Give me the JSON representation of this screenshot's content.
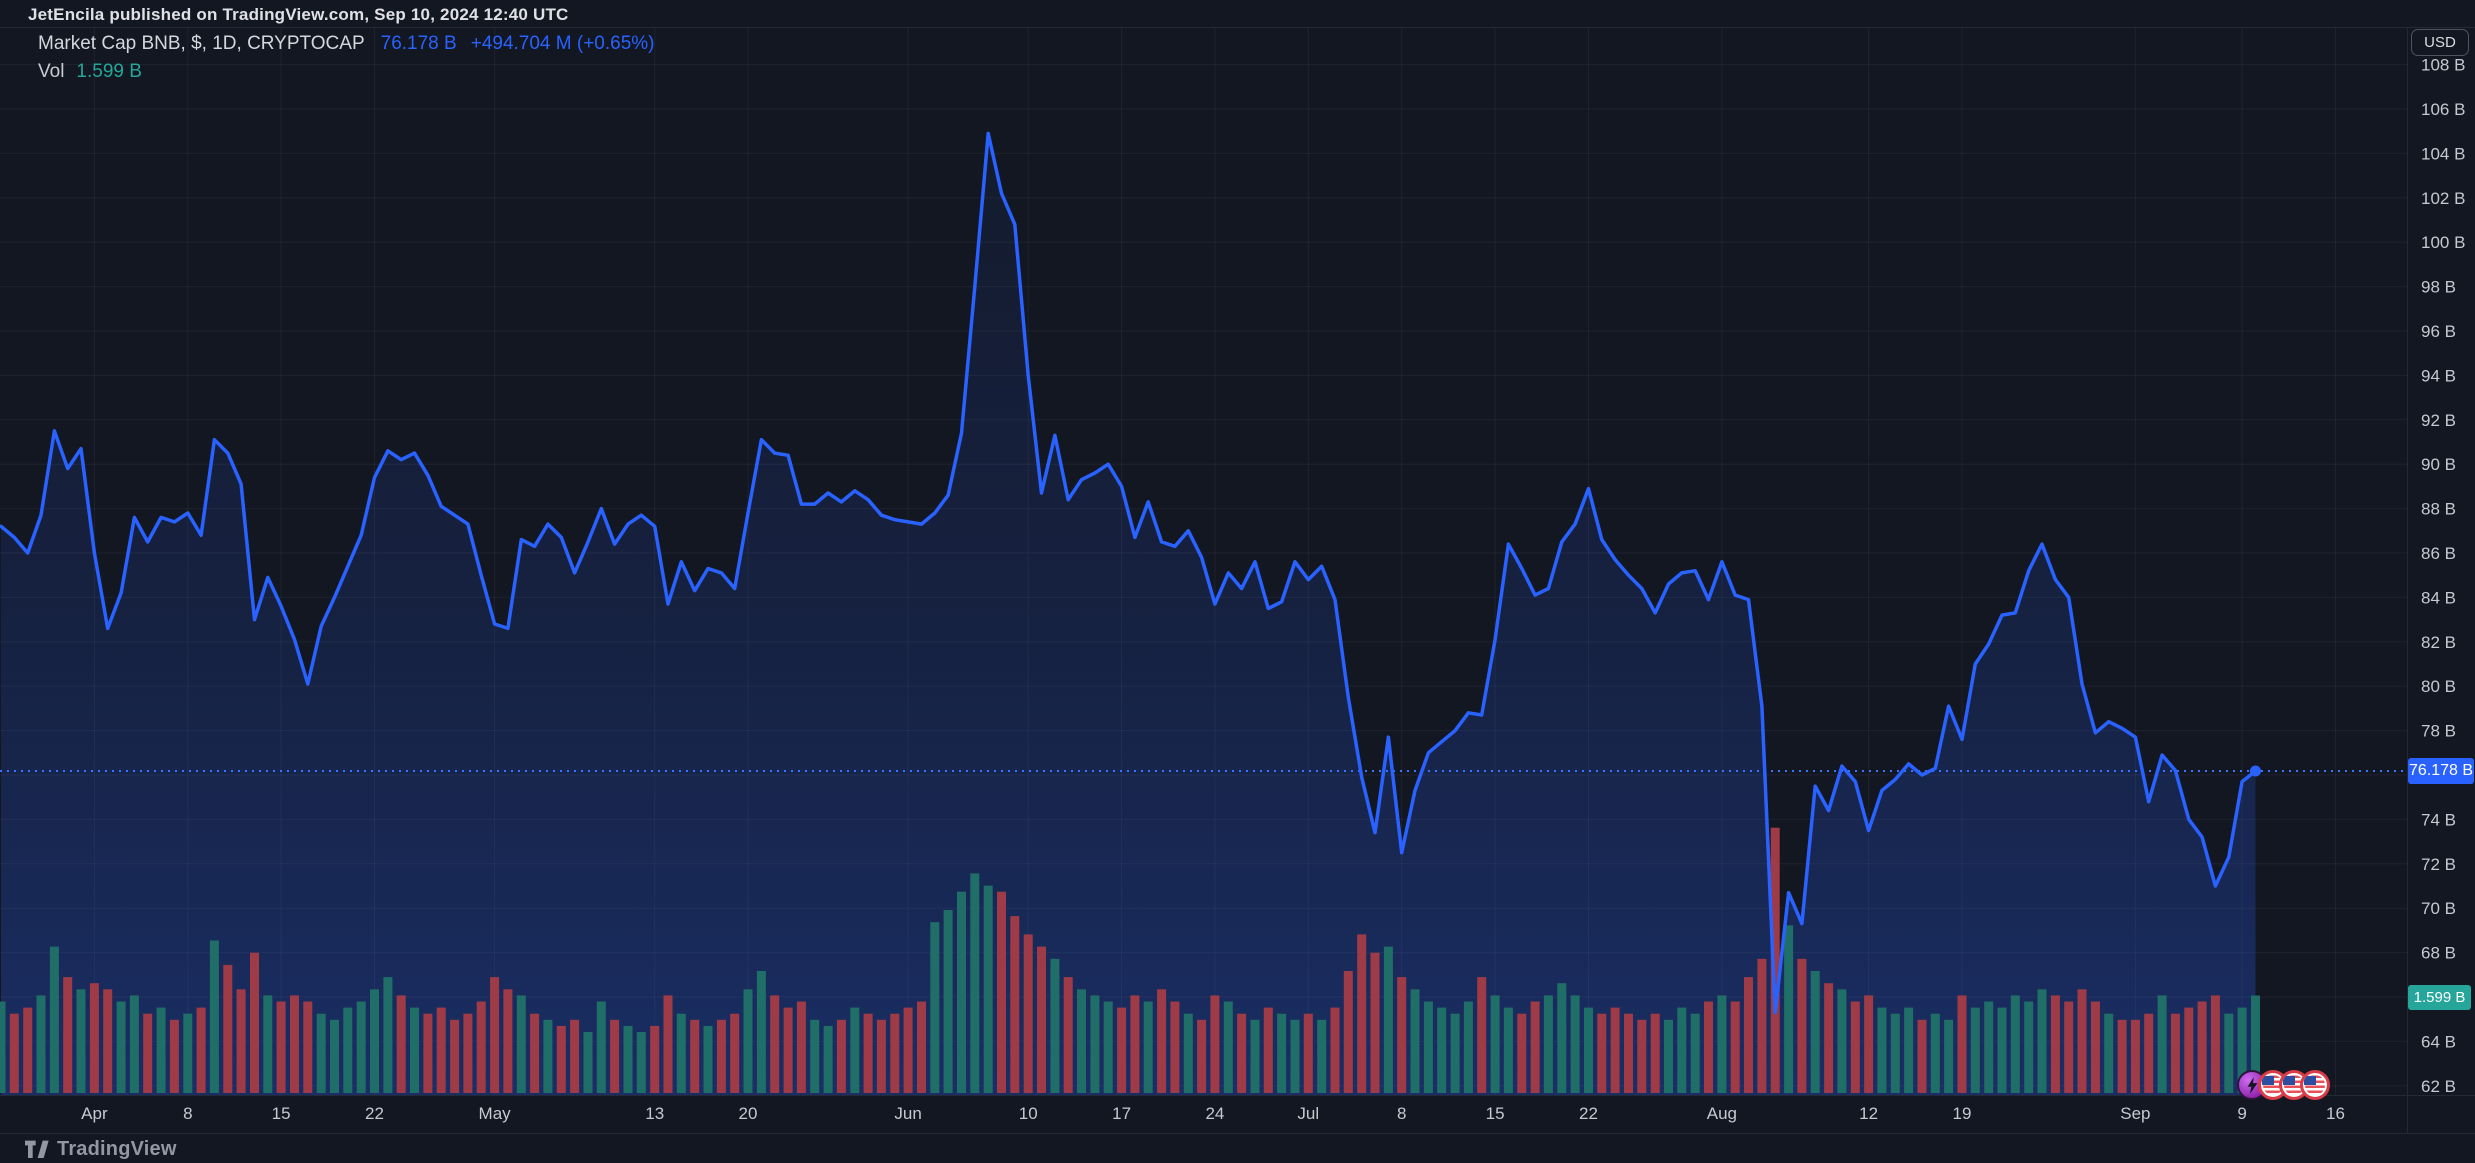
{
  "header": {
    "text": "JetEncila published on TradingView.com, Sep 10, 2024 12:40 UTC"
  },
  "legend": {
    "title": "Market Cap BNB, $, 1D, CRYPTOCAP",
    "price": "76.178 B",
    "change": "+494.704 M (+0.65%)",
    "vol_label": "Vol",
    "vol_value": "1.599 B"
  },
  "axis": {
    "currency": "USD",
    "price_label": "76.178 B",
    "vol_label": "1.599 B"
  },
  "footer": {
    "brand": "TradingView"
  },
  "event_markers": [
    "lightning-event-icon",
    "us-flag-event-icon",
    "us-flag-event-icon",
    "us-flag-event-icon"
  ],
  "colors": {
    "background": "#131722",
    "accent": "#2962ff",
    "grid": "rgba(255,255,255,0.05)",
    "axis_text": "#c6c9d0",
    "vol_up": "#206e68",
    "vol_down": "#9e3b46",
    "price_label_bg": "#2962ff",
    "vol_label_bg": "#26a69a",
    "frame": "#242936"
  },
  "chart_data": {
    "type": "area",
    "title": "Market Cap BNB, $, 1D, CRYPTOCAP",
    "xlabel": "",
    "ylabel": "USD",
    "interval": "1D",
    "start_date": "2024-03-25",
    "end_date": "2024-09-10",
    "last_price": 76.178,
    "last_change": "+494.704 M (+0.65%)",
    "last_volume_b": 1.599,
    "ylim": [
      62,
      108
    ],
    "grid": true,
    "legend_position": "top-left",
    "y_ticks": [
      "108 B",
      "106 B",
      "104 B",
      "102 B",
      "100 B",
      "98 B",
      "96 B",
      "94 B",
      "92 B",
      "90 B",
      "88 B",
      "86 B",
      "84 B",
      "82 B",
      "80 B",
      "78 B",
      "76 B",
      "74 B",
      "72 B",
      "70 B",
      "68 B",
      "66 B",
      "64 B",
      "62 B"
    ],
    "x_ticks": [
      {
        "label": "Apr",
        "i": 7
      },
      {
        "label": "8",
        "i": 14
      },
      {
        "label": "15",
        "i": 21
      },
      {
        "label": "22",
        "i": 28
      },
      {
        "label": "May",
        "i": 37
      },
      {
        "label": "13",
        "i": 49
      },
      {
        "label": "20",
        "i": 56
      },
      {
        "label": "Jun",
        "i": 68
      },
      {
        "label": "10",
        "i": 77
      },
      {
        "label": "17",
        "i": 84
      },
      {
        "label": "24",
        "i": 91
      },
      {
        "label": "Jul",
        "i": 98
      },
      {
        "label": "8",
        "i": 105
      },
      {
        "label": "15",
        "i": 112
      },
      {
        "label": "22",
        "i": 119
      },
      {
        "label": "Aug",
        "i": 129
      },
      {
        "label": "12",
        "i": 140
      },
      {
        "label": "19",
        "i": 147
      },
      {
        "label": "Sep",
        "i": 160
      },
      {
        "label": "9",
        "i": 168
      },
      {
        "label": "16",
        "i": 175
      }
    ],
    "values": [
      87.2,
      86.7,
      86.0,
      87.7,
      91.5,
      89.8,
      90.7,
      86.0,
      82.6,
      84.2,
      87.6,
      86.5,
      87.6,
      87.4,
      87.8,
      86.8,
      91.1,
      90.5,
      89.1,
      83.0,
      84.9,
      83.6,
      82.1,
      80.1,
      82.7,
      84.0,
      85.4,
      86.8,
      89.4,
      90.6,
      90.2,
      90.5,
      89.5,
      88.1,
      87.7,
      87.3,
      85.0,
      82.8,
      82.6,
      86.6,
      86.3,
      87.3,
      86.7,
      85.1,
      86.5,
      88.0,
      86.4,
      87.3,
      87.7,
      87.2,
      83.7,
      85.6,
      84.3,
      85.3,
      85.1,
      84.4,
      87.8,
      91.1,
      90.5,
      90.4,
      88.2,
      88.2,
      88.7,
      88.3,
      88.8,
      88.4,
      87.7,
      87.5,
      87.4,
      87.3,
      87.8,
      88.6,
      91.4,
      98.0,
      104.9,
      102.2,
      100.8,
      94.0,
      88.7,
      91.3,
      88.4,
      89.3,
      89.6,
      90.0,
      89.0,
      86.7,
      88.3,
      86.5,
      86.3,
      87.0,
      85.8,
      83.7,
      85.1,
      84.4,
      85.6,
      83.5,
      83.8,
      85.6,
      84.8,
      85.4,
      83.9,
      79.5,
      75.9,
      73.4,
      77.7,
      72.5,
      75.3,
      77.0,
      77.5,
      78.0,
      78.8,
      78.7,
      82.1,
      86.4,
      85.3,
      84.1,
      84.4,
      86.5,
      87.3,
      88.9,
      86.6,
      85.7,
      85.0,
      84.4,
      83.3,
      84.6,
      85.1,
      85.2,
      83.9,
      85.6,
      84.1,
      83.9,
      79.1,
      65.3,
      70.7,
      69.3,
      75.5,
      74.4,
      76.4,
      75.7,
      73.5,
      75.3,
      75.8,
      76.5,
      76.0,
      76.3,
      79.1,
      77.6,
      81.0,
      81.9,
      83.2,
      83.3,
      85.2,
      86.4,
      84.8,
      84.0,
      80.1,
      77.9,
      78.4,
      78.1,
      77.7,
      74.8,
      76.9,
      76.2,
      74.0,
      73.2,
      71.0,
      72.3,
      75.7,
      76.178
    ],
    "volumes_b": [
      1.5,
      1.3,
      1.4,
      1.6,
      2.4,
      1.9,
      1.7,
      1.8,
      1.7,
      1.5,
      1.6,
      1.3,
      1.4,
      1.2,
      1.3,
      1.4,
      2.5,
      2.1,
      1.7,
      2.3,
      1.6,
      1.5,
      1.6,
      1.5,
      1.3,
      1.2,
      1.4,
      1.5,
      1.7,
      1.9,
      1.6,
      1.4,
      1.3,
      1.4,
      1.2,
      1.3,
      1.5,
      1.9,
      1.7,
      1.6,
      1.3,
      1.2,
      1.1,
      1.2,
      1.0,
      1.5,
      1.2,
      1.1,
      1.0,
      1.1,
      1.6,
      1.3,
      1.2,
      1.1,
      1.2,
      1.3,
      1.7,
      2.0,
      1.6,
      1.4,
      1.5,
      1.2,
      1.1,
      1.2,
      1.4,
      1.3,
      1.2,
      1.3,
      1.4,
      1.5,
      2.8,
      3.0,
      3.3,
      3.6,
      3.4,
      3.3,
      2.9,
      2.6,
      2.4,
      2.2,
      1.9,
      1.7,
      1.6,
      1.5,
      1.4,
      1.6,
      1.5,
      1.7,
      1.5,
      1.3,
      1.2,
      1.6,
      1.5,
      1.3,
      1.2,
      1.4,
      1.3,
      1.2,
      1.3,
      1.2,
      1.4,
      2.0,
      2.6,
      2.3,
      2.4,
      1.9,
      1.7,
      1.5,
      1.4,
      1.3,
      1.5,
      1.9,
      1.6,
      1.4,
      1.3,
      1.5,
      1.6,
      1.8,
      1.6,
      1.4,
      1.3,
      1.4,
      1.3,
      1.2,
      1.3,
      1.2,
      1.4,
      1.3,
      1.5,
      1.6,
      1.5,
      1.9,
      2.2,
      4.35,
      2.75,
      2.2,
      2.0,
      1.8,
      1.7,
      1.5,
      1.6,
      1.4,
      1.3,
      1.4,
      1.2,
      1.3,
      1.2,
      1.6,
      1.4,
      1.5,
      1.4,
      1.6,
      1.5,
      1.7,
      1.6,
      1.5,
      1.7,
      1.5,
      1.3,
      1.2,
      1.2,
      1.3,
      1.6,
      1.3,
      1.4,
      1.5,
      1.6,
      1.3,
      1.4,
      1.599
    ]
  }
}
